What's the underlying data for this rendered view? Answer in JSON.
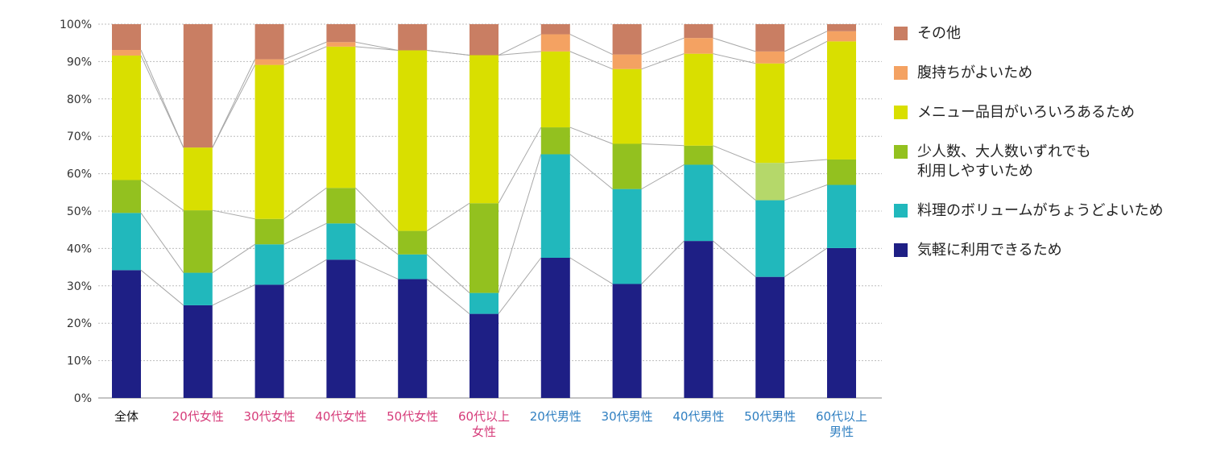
{
  "chart_data": {
    "type": "bar",
    "stacked": true,
    "title": "",
    "xlabel": "",
    "ylabel": "",
    "ylim": [
      0,
      100
    ],
    "y_ticks": [
      "0%",
      "10%",
      "20%",
      "30%",
      "40%",
      "50%",
      "60%",
      "70%",
      "80%",
      "90%",
      "100%"
    ],
    "grid": true,
    "categories": [
      {
        "label": "全体",
        "color": "#111111"
      },
      {
        "label": "20代女性",
        "color": "#d63c7a"
      },
      {
        "label": "30代女性",
        "color": "#d63c7a"
      },
      {
        "label": "40代女性",
        "color": "#d63c7a"
      },
      {
        "label": "50代女性",
        "color": "#d63c7a"
      },
      {
        "label": "60代以上\n女性",
        "color": "#d63c7a"
      },
      {
        "label": "20代男性",
        "color": "#2f7fc1"
      },
      {
        "label": "30代男性",
        "color": "#2f7fc1"
      },
      {
        "label": "40代男性",
        "color": "#2f7fc1"
      },
      {
        "label": "50代男性",
        "color": "#2f7fc1"
      },
      {
        "label": "60代以上\n男性",
        "color": "#2f7fc1"
      }
    ],
    "series": [
      {
        "name": "気軽に利用できるため",
        "color": "#1e1f85",
        "values": [
          34.2,
          24.8,
          30.3,
          37.0,
          31.8,
          22.5,
          37.5,
          30.5,
          42.0,
          32.4,
          40.1
        ]
      },
      {
        "name": "料理のボリュームがちょうどよいため",
        "color": "#21b8bc",
        "values": [
          15.3,
          8.7,
          10.8,
          9.7,
          6.6,
          5.6,
          27.7,
          25.4,
          20.4,
          20.5,
          16.9
        ]
      },
      {
        "name": "少人数、大人数いずれでも\n利用しやすいため",
        "color": "#93c11f",
        "values": [
          8.8,
          16.7,
          6.8,
          9.5,
          6.3,
          24.0,
          7.2,
          12.1,
          5.1,
          10.0,
          6.8
        ]
      },
      {
        "name": "メニュー品目がいろいろあるため",
        "color": "#d9df00",
        "values": [
          33.3,
          16.8,
          41.2,
          37.8,
          48.3,
          39.6,
          20.3,
          20.0,
          24.6,
          26.6,
          31.6
        ]
      },
      {
        "name": "腹持ちがよいため",
        "color": "#f4a262",
        "values": [
          1.5,
          0,
          1.5,
          1.2,
          0,
          0,
          4.6,
          3.9,
          4.2,
          3.2,
          2.7
        ]
      },
      {
        "name": "その他",
        "color": "#c97e63",
        "values": [
          6.9,
          33.0,
          9.4,
          4.8,
          7.0,
          8.3,
          2.7,
          8.1,
          3.7,
          7.3,
          1.9
        ]
      }
    ],
    "highlight_cell": {
      "category_index": 9,
      "series_index": 2,
      "color": "#b5d86a"
    }
  }
}
